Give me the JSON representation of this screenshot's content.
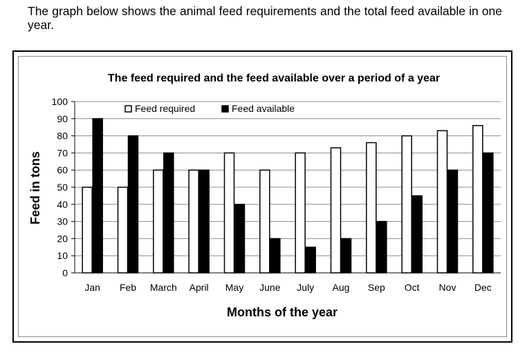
{
  "intro_text": "The graph below shows the animal feed requirements and the total feed available in one year.",
  "chart_data": {
    "type": "bar",
    "title": "The feed required and the feed available over a period of a year",
    "xlabel": "Months of the year",
    "ylabel": "Feed in tons",
    "ylim": [
      0,
      100
    ],
    "yticks": [
      0,
      10,
      20,
      30,
      40,
      50,
      60,
      70,
      80,
      90,
      100
    ],
    "grid": true,
    "legend_position": "top",
    "categories": [
      "Jan",
      "Feb",
      "March",
      "April",
      "May",
      "June",
      "July",
      "Aug",
      "Sep",
      "Oct",
      "Nov",
      "Dec"
    ],
    "series": [
      {
        "name": "Feed required",
        "color": "#ffffff",
        "stroke": "#000000",
        "values": [
          50,
          50,
          60,
          60,
          70,
          60,
          70,
          73,
          76,
          80,
          83,
          86
        ]
      },
      {
        "name": "Feed available",
        "color": "#000000",
        "stroke": "#000000",
        "values": [
          90,
          80,
          70,
          60,
          40,
          20,
          15,
          20,
          30,
          45,
          60,
          70
        ]
      }
    ]
  }
}
